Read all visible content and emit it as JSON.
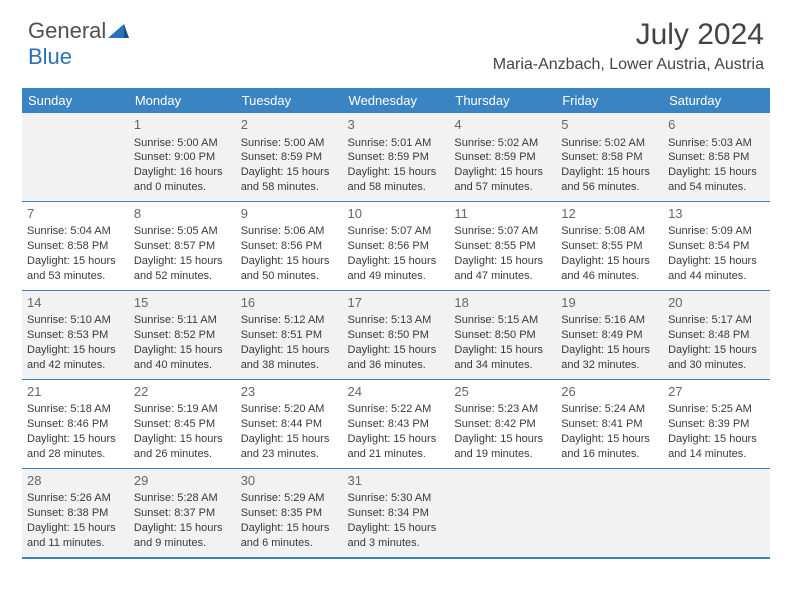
{
  "logo": {
    "text1": "General",
    "text2": "Blue"
  },
  "title": "July 2024",
  "location": "Maria-Anzbach, Lower Austria, Austria",
  "colors": {
    "header_bg": "#3b84c4",
    "header_text": "#ffffff",
    "page_bg": "#ffffff",
    "alt_row_bg": "#f2f2f2",
    "text": "#3a3a3a",
    "daynum": "#666666",
    "logo_gray": "#505050",
    "logo_blue": "#2b71b8"
  },
  "fonts": {
    "title_size_pt": 22,
    "location_size_pt": 12,
    "header_size_pt": 10,
    "cell_size_pt": 8
  },
  "day_headers": [
    "Sunday",
    "Monday",
    "Tuesday",
    "Wednesday",
    "Thursday",
    "Friday",
    "Saturday"
  ],
  "weeks": [
    {
      "bg": "gray",
      "days": [
        {
          "num": "",
          "sunrise": "",
          "sunset": "",
          "daylight": ""
        },
        {
          "num": "1",
          "sunrise": "Sunrise: 5:00 AM",
          "sunset": "Sunset: 9:00 PM",
          "daylight": "Daylight: 16 hours and 0 minutes."
        },
        {
          "num": "2",
          "sunrise": "Sunrise: 5:00 AM",
          "sunset": "Sunset: 8:59 PM",
          "daylight": "Daylight: 15 hours and 58 minutes."
        },
        {
          "num": "3",
          "sunrise": "Sunrise: 5:01 AM",
          "sunset": "Sunset: 8:59 PM",
          "daylight": "Daylight: 15 hours and 58 minutes."
        },
        {
          "num": "4",
          "sunrise": "Sunrise: 5:02 AM",
          "sunset": "Sunset: 8:59 PM",
          "daylight": "Daylight: 15 hours and 57 minutes."
        },
        {
          "num": "5",
          "sunrise": "Sunrise: 5:02 AM",
          "sunset": "Sunset: 8:58 PM",
          "daylight": "Daylight: 15 hours and 56 minutes."
        },
        {
          "num": "6",
          "sunrise": "Sunrise: 5:03 AM",
          "sunset": "Sunset: 8:58 PM",
          "daylight": "Daylight: 15 hours and 54 minutes."
        }
      ]
    },
    {
      "bg": "white",
      "days": [
        {
          "num": "7",
          "sunrise": "Sunrise: 5:04 AM",
          "sunset": "Sunset: 8:58 PM",
          "daylight": "Daylight: 15 hours and 53 minutes."
        },
        {
          "num": "8",
          "sunrise": "Sunrise: 5:05 AM",
          "sunset": "Sunset: 8:57 PM",
          "daylight": "Daylight: 15 hours and 52 minutes."
        },
        {
          "num": "9",
          "sunrise": "Sunrise: 5:06 AM",
          "sunset": "Sunset: 8:56 PM",
          "daylight": "Daylight: 15 hours and 50 minutes."
        },
        {
          "num": "10",
          "sunrise": "Sunrise: 5:07 AM",
          "sunset": "Sunset: 8:56 PM",
          "daylight": "Daylight: 15 hours and 49 minutes."
        },
        {
          "num": "11",
          "sunrise": "Sunrise: 5:07 AM",
          "sunset": "Sunset: 8:55 PM",
          "daylight": "Daylight: 15 hours and 47 minutes."
        },
        {
          "num": "12",
          "sunrise": "Sunrise: 5:08 AM",
          "sunset": "Sunset: 8:55 PM",
          "daylight": "Daylight: 15 hours and 46 minutes."
        },
        {
          "num": "13",
          "sunrise": "Sunrise: 5:09 AM",
          "sunset": "Sunset: 8:54 PM",
          "daylight": "Daylight: 15 hours and 44 minutes."
        }
      ]
    },
    {
      "bg": "gray",
      "days": [
        {
          "num": "14",
          "sunrise": "Sunrise: 5:10 AM",
          "sunset": "Sunset: 8:53 PM",
          "daylight": "Daylight: 15 hours and 42 minutes."
        },
        {
          "num": "15",
          "sunrise": "Sunrise: 5:11 AM",
          "sunset": "Sunset: 8:52 PM",
          "daylight": "Daylight: 15 hours and 40 minutes."
        },
        {
          "num": "16",
          "sunrise": "Sunrise: 5:12 AM",
          "sunset": "Sunset: 8:51 PM",
          "daylight": "Daylight: 15 hours and 38 minutes."
        },
        {
          "num": "17",
          "sunrise": "Sunrise: 5:13 AM",
          "sunset": "Sunset: 8:50 PM",
          "daylight": "Daylight: 15 hours and 36 minutes."
        },
        {
          "num": "18",
          "sunrise": "Sunrise: 5:15 AM",
          "sunset": "Sunset: 8:50 PM",
          "daylight": "Daylight: 15 hours and 34 minutes."
        },
        {
          "num": "19",
          "sunrise": "Sunrise: 5:16 AM",
          "sunset": "Sunset: 8:49 PM",
          "daylight": "Daylight: 15 hours and 32 minutes."
        },
        {
          "num": "20",
          "sunrise": "Sunrise: 5:17 AM",
          "sunset": "Sunset: 8:48 PM",
          "daylight": "Daylight: 15 hours and 30 minutes."
        }
      ]
    },
    {
      "bg": "white",
      "days": [
        {
          "num": "21",
          "sunrise": "Sunrise: 5:18 AM",
          "sunset": "Sunset: 8:46 PM",
          "daylight": "Daylight: 15 hours and 28 minutes."
        },
        {
          "num": "22",
          "sunrise": "Sunrise: 5:19 AM",
          "sunset": "Sunset: 8:45 PM",
          "daylight": "Daylight: 15 hours and 26 minutes."
        },
        {
          "num": "23",
          "sunrise": "Sunrise: 5:20 AM",
          "sunset": "Sunset: 8:44 PM",
          "daylight": "Daylight: 15 hours and 23 minutes."
        },
        {
          "num": "24",
          "sunrise": "Sunrise: 5:22 AM",
          "sunset": "Sunset: 8:43 PM",
          "daylight": "Daylight: 15 hours and 21 minutes."
        },
        {
          "num": "25",
          "sunrise": "Sunrise: 5:23 AM",
          "sunset": "Sunset: 8:42 PM",
          "daylight": "Daylight: 15 hours and 19 minutes."
        },
        {
          "num": "26",
          "sunrise": "Sunrise: 5:24 AM",
          "sunset": "Sunset: 8:41 PM",
          "daylight": "Daylight: 15 hours and 16 minutes."
        },
        {
          "num": "27",
          "sunrise": "Sunrise: 5:25 AM",
          "sunset": "Sunset: 8:39 PM",
          "daylight": "Daylight: 15 hours and 14 minutes."
        }
      ]
    },
    {
      "bg": "gray",
      "days": [
        {
          "num": "28",
          "sunrise": "Sunrise: 5:26 AM",
          "sunset": "Sunset: 8:38 PM",
          "daylight": "Daylight: 15 hours and 11 minutes."
        },
        {
          "num": "29",
          "sunrise": "Sunrise: 5:28 AM",
          "sunset": "Sunset: 8:37 PM",
          "daylight": "Daylight: 15 hours and 9 minutes."
        },
        {
          "num": "30",
          "sunrise": "Sunrise: 5:29 AM",
          "sunset": "Sunset: 8:35 PM",
          "daylight": "Daylight: 15 hours and 6 minutes."
        },
        {
          "num": "31",
          "sunrise": "Sunrise: 5:30 AM",
          "sunset": "Sunset: 8:34 PM",
          "daylight": "Daylight: 15 hours and 3 minutes."
        },
        {
          "num": "",
          "sunrise": "",
          "sunset": "",
          "daylight": ""
        },
        {
          "num": "",
          "sunrise": "",
          "sunset": "",
          "daylight": ""
        },
        {
          "num": "",
          "sunrise": "",
          "sunset": "",
          "daylight": ""
        }
      ]
    }
  ]
}
